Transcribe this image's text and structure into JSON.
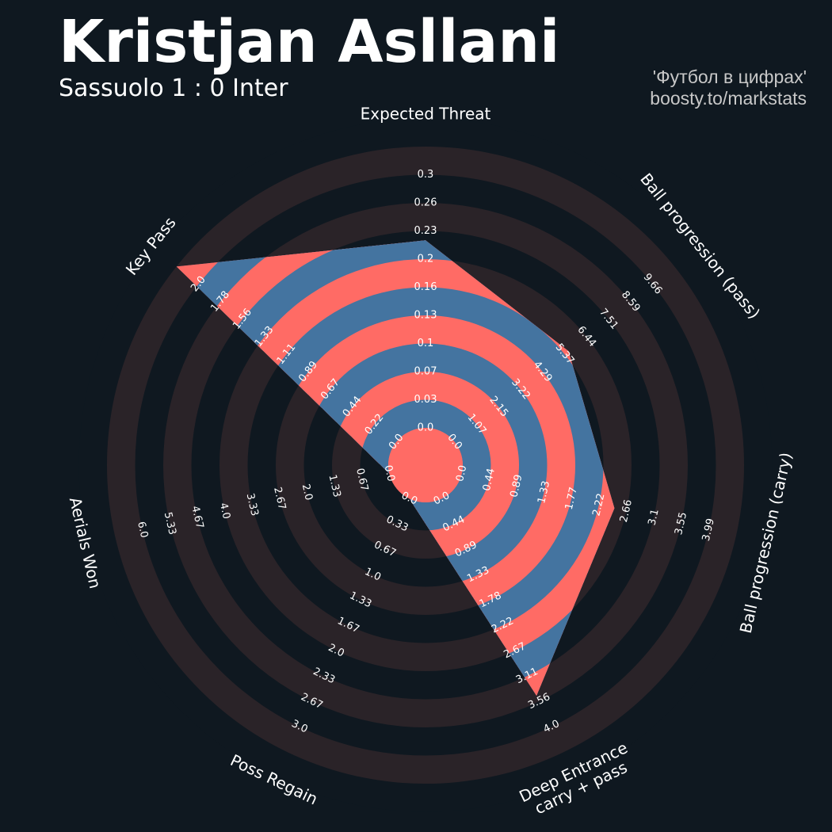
{
  "header": {
    "title": "Kristjan Asllani",
    "subtitle": "Sassuolo 1 : 0 Inter",
    "credit_line1": "'Футбол в цифрах'",
    "credit_line2": "boosty.to/markstats"
  },
  "colors": {
    "background": "#0f1820",
    "ring_dark": "#2a2328",
    "ring_light": "#0f1820",
    "value_blue": "#4474a0",
    "value_red": "#ff6b65",
    "label_text": "#ffffff"
  },
  "chart_data": {
    "type": "radar",
    "axes": [
      {
        "name": "Expected Threat",
        "ticks": [
          "0.0",
          "0.03",
          "0.07",
          "0.1",
          "0.13",
          "0.16",
          "0.2",
          "0.23",
          "0.26",
          "0.3"
        ],
        "min": 0.0,
        "max": 0.3,
        "value": 0.2
      },
      {
        "name": "Ball progression (pass)",
        "ticks": [
          "0.0",
          "1.07",
          "2.15",
          "3.22",
          "4.29",
          "5.37",
          "6.44",
          "7.51",
          "8.59",
          "9.66"
        ],
        "min": 0.0,
        "max": 9.66,
        "value": 5.0
      },
      {
        "name": "Ball progression (carry)",
        "ticks": [
          "0.0",
          "0.44",
          "0.89",
          "1.33",
          "1.77",
          "2.22",
          "2.66",
          "3.1",
          "3.55",
          "3.99"
        ],
        "min": 0.0,
        "max": 3.99,
        "value": 2.22
      },
      {
        "name": "Deep Entrance\ncarry + pass",
        "ticks": [
          "0.0",
          "0.44",
          "0.89",
          "1.33",
          "1.78",
          "2.22",
          "2.67",
          "3.11",
          "3.56",
          "4.0"
        ],
        "min": 0.0,
        "max": 4.0,
        "value": 3.11
      },
      {
        "name": "Poss Regain",
        "ticks": [
          "0.0",
          "0.33",
          "0.67",
          "1.0",
          "1.33",
          "1.67",
          "2.0",
          "2.33",
          "2.67",
          "3.0"
        ],
        "min": 0.0,
        "max": 3.0,
        "value": 0.0
      },
      {
        "name": "Aerials Won",
        "ticks": [
          "0.0",
          "0.67",
          "1.33",
          "2.0",
          "2.67",
          "3.33",
          "4.0",
          "4.67",
          "5.33",
          "6.0"
        ],
        "min": 0.0,
        "max": 6.0,
        "value": 0.0
      },
      {
        "name": "Key Pass",
        "ticks": [
          "0.0",
          "0.22",
          "0.44",
          "0.67",
          "0.89",
          "1.11",
          "1.33",
          "1.56",
          "1.78",
          "2.0"
        ],
        "min": 0.0,
        "max": 2.0,
        "value": 2.0
      }
    ]
  }
}
